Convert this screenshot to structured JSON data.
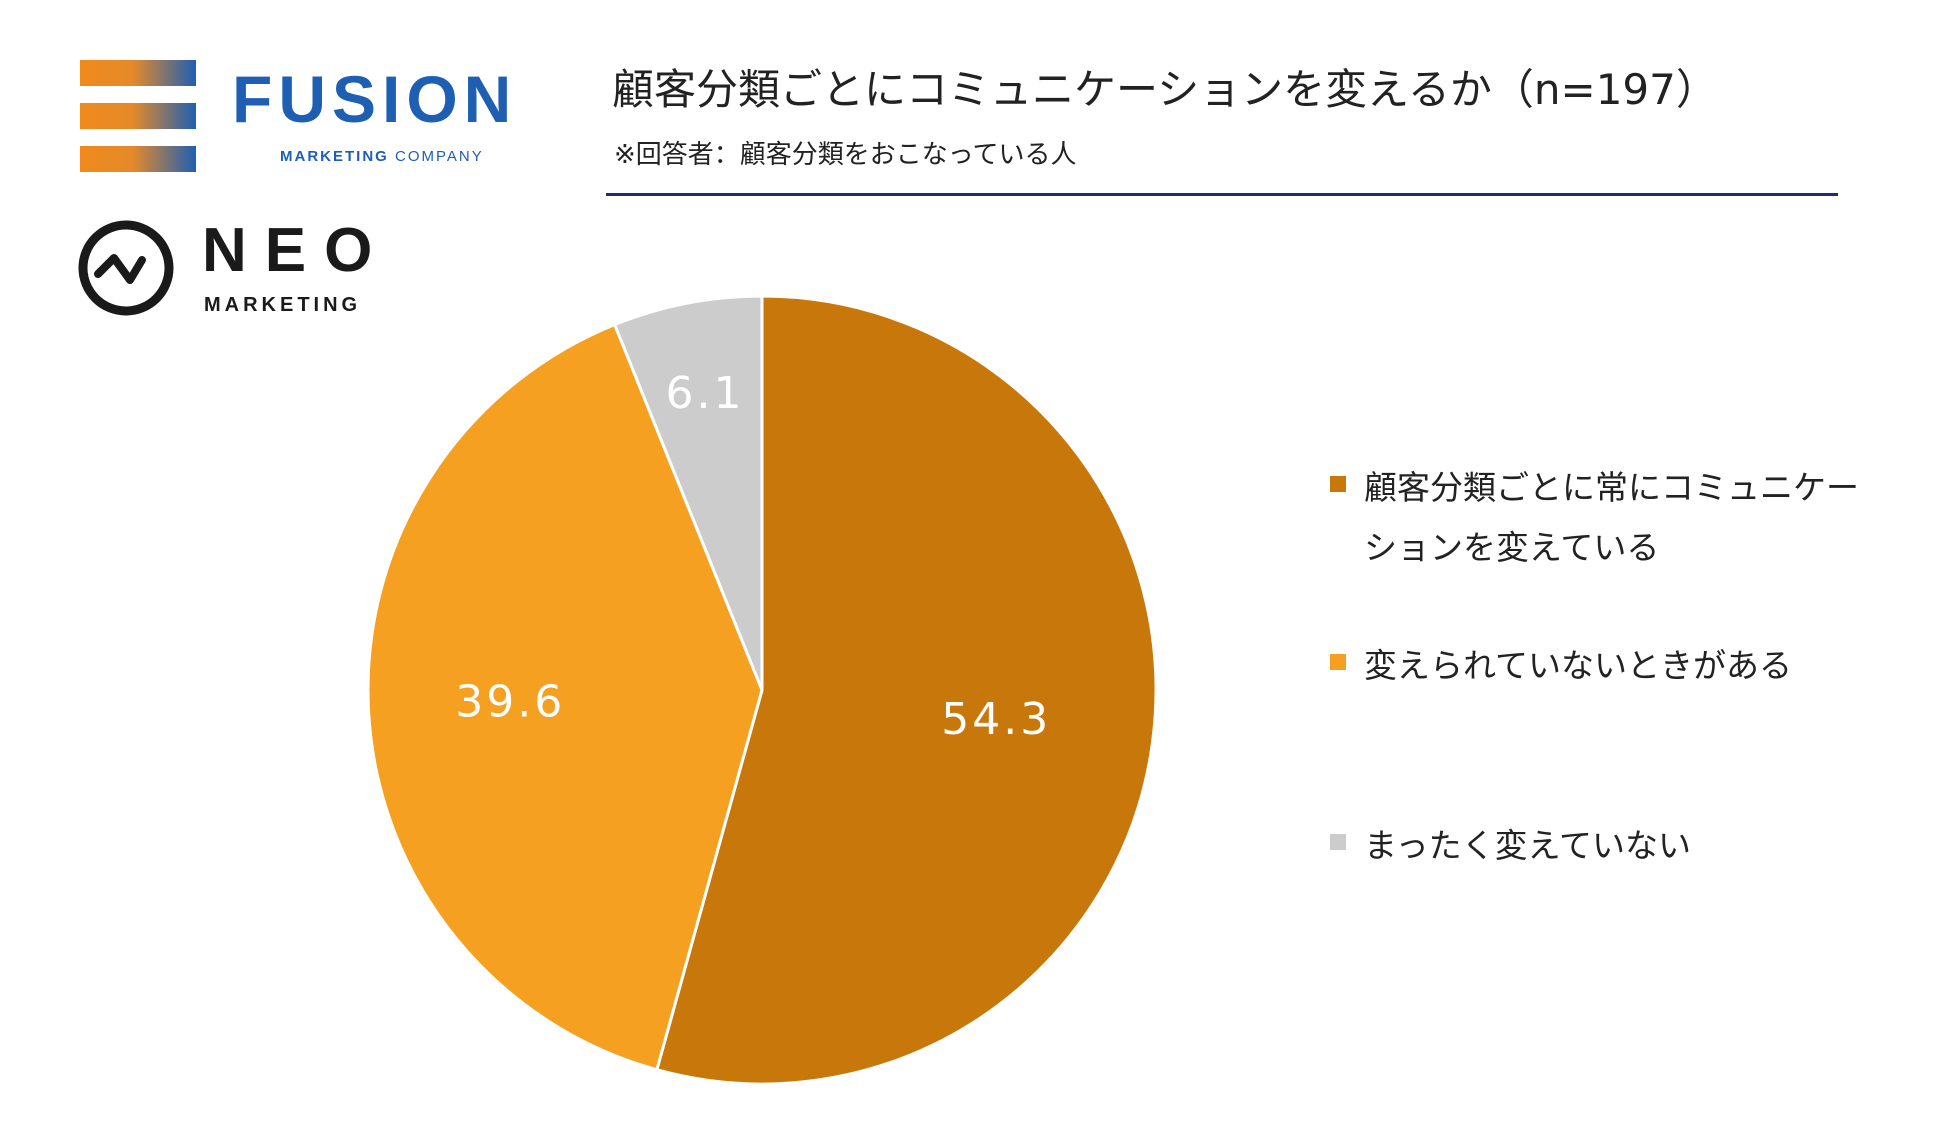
{
  "logos": {
    "fusion": {
      "name": "FUSION",
      "sub_bold": "MARKETING",
      "sub_rest": "COMPANY"
    },
    "neo": {
      "name": "NEO",
      "sub": "MARKETING"
    }
  },
  "header": {
    "title": "顧客分類ごとにコミュニケーションを変えるか（n=197）",
    "subtitle": "※回答者：顧客分類をおこなっている人"
  },
  "colors": {
    "slice1": "#c8780a",
    "slice2": "#f5a020",
    "slice3": "#cccccc",
    "rule": "#1f2e6b"
  },
  "chart_data": {
    "type": "pie",
    "title": "顧客分類ごとにコミュニケーションを変えるか（n=197）",
    "start": "12 o'clock, clockwise",
    "legend_position": "right",
    "slices": [
      {
        "label": "顧客分類ごとに常にコミュニケーションを変えている",
        "value": 54.3,
        "display": "54.3",
        "color": "#c8780a"
      },
      {
        "label": "変えられていないときがある",
        "value": 39.6,
        "display": "39.6",
        "color": "#f5a020"
      },
      {
        "label": "まったく変えていない",
        "value": 6.1,
        "display": "6.1",
        "color": "#cccccc"
      }
    ]
  }
}
